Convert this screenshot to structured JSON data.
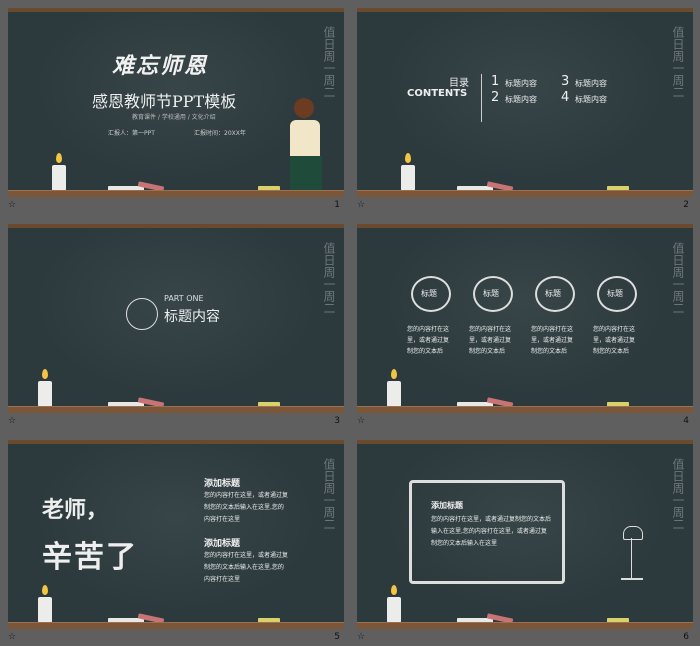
{
  "slide1": {
    "title_art": "难忘师恩",
    "title": "感恩教师节PPT模板",
    "subtitle": "教育课件 / 学校通用 / 文化介绍",
    "speaker": "汇报人：第一PPT",
    "date": "汇报时间：20XX年",
    "page": "1"
  },
  "slide2": {
    "heading": "目录",
    "heading_en": "CONTENTS",
    "items": [
      {
        "num": "1",
        "label": "标题内容"
      },
      {
        "num": "2",
        "label": "标题内容"
      },
      {
        "num": "3",
        "label": "标题内容"
      },
      {
        "num": "4",
        "label": "标题内容"
      }
    ],
    "page": "2"
  },
  "slide3": {
    "part": "PART ONE",
    "title": "标题内容",
    "page": "3"
  },
  "slide4": {
    "items": [
      {
        "label": "标题",
        "text": "您的内容打在这里，或者通过复制您的文本后"
      },
      {
        "label": "标题",
        "text": "您的内容打在这里，或者通过复制您的文本后"
      },
      {
        "label": "标题",
        "text": "您的内容打在这里，或者通过复制您的文本后"
      },
      {
        "label": "标题",
        "text": "您的内容打在这里，或者通过复制您的文本后"
      }
    ],
    "page": "4"
  },
  "slide5": {
    "big1": "老师，",
    "big2": "辛苦了",
    "blocks": [
      {
        "title": "添加标题",
        "text": "您的内容打在这里，或者通过复制您的文本后输入在这里,您的内容打在这里"
      },
      {
        "title": "添加标题",
        "text": "您的内容打在这里，或者通过复制您的文本后输入在这里,您的内容打在这里"
      }
    ],
    "page": "5"
  },
  "slide6": {
    "title": "添加标题",
    "text": "您的内容打在这里，或者通过复制您的文本后输入在这里,您的内容打在这里，或者通过复制您的文本后输入在这里",
    "page": "6"
  },
  "footer_icon": "slide-icon"
}
